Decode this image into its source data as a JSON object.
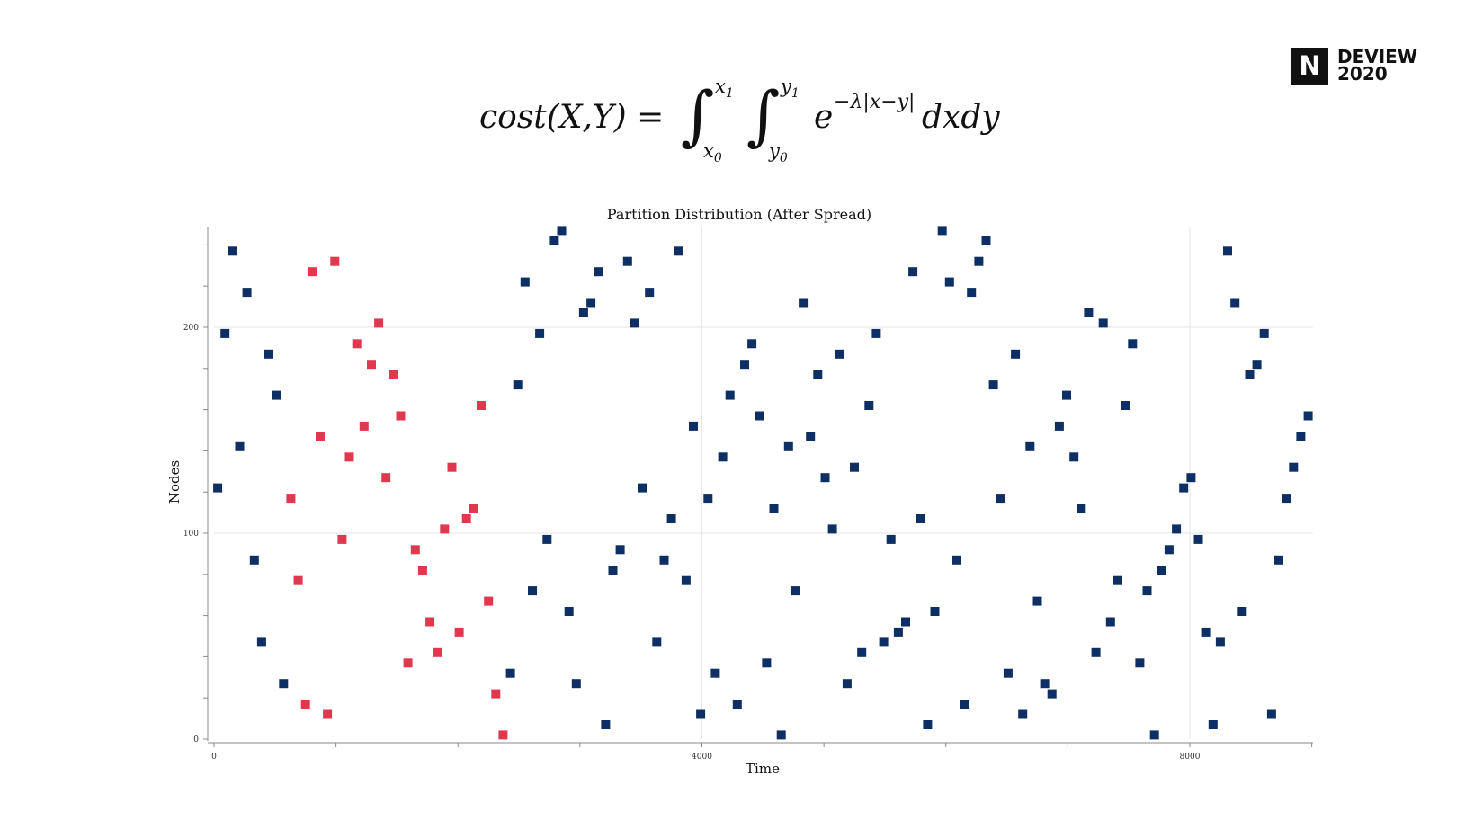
{
  "logo": {
    "letter": "N",
    "line1": "DEVIEW",
    "line2": "2020"
  },
  "formula": {
    "lhs": "cost(X,Y) =",
    "upper1": "x",
    "upper1_sub": "1",
    "lower1": "x",
    "lower1_sub": "0",
    "upper2": "y",
    "upper2_sub": "1",
    "lower2": "y",
    "lower2_sub": "0",
    "base": "e",
    "exponent": "−λ|x−y|",
    "diff": "dxdy"
  },
  "chart_data": {
    "type": "scatter",
    "title": "Partition Distribution (After Spread)",
    "xlabel": "Time",
    "ylabel": "Nodes",
    "xlim": [
      0,
      9050
    ],
    "ylim": [
      0,
      250
    ],
    "xticks": [
      0,
      4000,
      8000
    ],
    "yticks": [
      0,
      100,
      200
    ],
    "grid": true,
    "series": [
      {
        "color": "#e0384f",
        "points": [
          [
            630,
            117
          ],
          [
            690,
            77
          ],
          [
            750,
            17
          ],
          [
            810,
            227
          ],
          [
            870,
            147
          ],
          [
            930,
            12
          ],
          [
            990,
            232
          ],
          [
            1050,
            97
          ],
          [
            1110,
            137
          ],
          [
            1170,
            192
          ],
          [
            1230,
            152
          ],
          [
            1290,
            182
          ],
          [
            1350,
            202
          ],
          [
            1410,
            127
          ],
          [
            1470,
            177
          ],
          [
            1530,
            157
          ],
          [
            1590,
            37
          ],
          [
            1650,
            92
          ],
          [
            1710,
            82
          ],
          [
            1770,
            57
          ],
          [
            1830,
            42
          ],
          [
            1890,
            102
          ],
          [
            1950,
            132
          ],
          [
            2010,
            52
          ],
          [
            2070,
            107
          ],
          [
            2130,
            112
          ],
          [
            2190,
            162
          ],
          [
            2250,
            67
          ],
          [
            2310,
            22
          ],
          [
            2370,
            2
          ]
        ]
      },
      {
        "color": "#0d2f63",
        "points": [
          [
            30,
            122
          ],
          [
            90,
            197
          ],
          [
            150,
            237
          ],
          [
            210,
            142
          ],
          [
            270,
            217
          ],
          [
            330,
            87
          ],
          [
            390,
            47
          ],
          [
            450,
            187
          ],
          [
            510,
            167
          ],
          [
            570,
            27
          ],
          [
            2430,
            32
          ],
          [
            2490,
            172
          ],
          [
            2550,
            222
          ],
          [
            2610,
            72
          ],
          [
            2670,
            197
          ],
          [
            2730,
            97
          ],
          [
            2790,
            242
          ],
          [
            2850,
            247
          ],
          [
            2910,
            62
          ],
          [
            2970,
            27
          ],
          [
            3030,
            207
          ],
          [
            3090,
            212
          ],
          [
            3150,
            227
          ],
          [
            3210,
            7
          ],
          [
            3270,
            82
          ],
          [
            3330,
            92
          ],
          [
            3390,
            232
          ],
          [
            3450,
            202
          ],
          [
            3510,
            122
          ],
          [
            3570,
            217
          ],
          [
            3630,
            47
          ],
          [
            3690,
            87
          ],
          [
            3750,
            107
          ],
          [
            3810,
            237
          ],
          [
            3870,
            77
          ],
          [
            3930,
            152
          ],
          [
            3990,
            12
          ],
          [
            4050,
            117
          ],
          [
            4110,
            32
          ],
          [
            4170,
            137
          ],
          [
            4230,
            167
          ],
          [
            4290,
            17
          ],
          [
            4350,
            182
          ],
          [
            4410,
            192
          ],
          [
            4470,
            157
          ],
          [
            4530,
            37
          ],
          [
            4590,
            112
          ],
          [
            4650,
            2
          ],
          [
            4710,
            142
          ],
          [
            4770,
            72
          ],
          [
            4830,
            212
          ],
          [
            4890,
            147
          ],
          [
            4950,
            177
          ],
          [
            5010,
            127
          ],
          [
            5070,
            102
          ],
          [
            5130,
            187
          ],
          [
            5190,
            27
          ],
          [
            5250,
            132
          ],
          [
            5310,
            42
          ],
          [
            5370,
            162
          ],
          [
            5430,
            197
          ],
          [
            5490,
            47
          ],
          [
            5550,
            97
          ],
          [
            5610,
            52
          ],
          [
            5670,
            57
          ],
          [
            5730,
            227
          ],
          [
            5790,
            107
          ],
          [
            5850,
            7
          ],
          [
            5910,
            62
          ],
          [
            5970,
            247
          ],
          [
            6030,
            222
          ],
          [
            6090,
            87
          ],
          [
            6150,
            17
          ],
          [
            6210,
            217
          ],
          [
            6270,
            232
          ],
          [
            6330,
            242
          ],
          [
            6390,
            172
          ],
          [
            6450,
            117
          ],
          [
            6510,
            32
          ],
          [
            6570,
            187
          ],
          [
            6630,
            12
          ],
          [
            6690,
            142
          ],
          [
            6750,
            67
          ],
          [
            6810,
            27
          ],
          [
            6870,
            22
          ],
          [
            6930,
            152
          ],
          [
            6990,
            167
          ],
          [
            7050,
            137
          ],
          [
            7110,
            112
          ],
          [
            7170,
            207
          ],
          [
            7230,
            42
          ],
          [
            7290,
            202
          ],
          [
            7350,
            57
          ],
          [
            7410,
            77
          ],
          [
            7470,
            162
          ],
          [
            7530,
            192
          ],
          [
            7590,
            37
          ],
          [
            7650,
            72
          ],
          [
            7710,
            2
          ],
          [
            7770,
            82
          ],
          [
            7830,
            92
          ],
          [
            7890,
            102
          ],
          [
            7950,
            122
          ],
          [
            8010,
            127
          ],
          [
            8070,
            97
          ],
          [
            8130,
            52
          ],
          [
            8190,
            7
          ],
          [
            8250,
            47
          ],
          [
            8310,
            237
          ],
          [
            8370,
            212
          ],
          [
            8430,
            62
          ],
          [
            8490,
            177
          ],
          [
            8550,
            182
          ],
          [
            8610,
            197
          ],
          [
            8670,
            12
          ],
          [
            8730,
            87
          ],
          [
            8790,
            117
          ],
          [
            8850,
            132
          ],
          [
            8910,
            147
          ],
          [
            8970,
            157
          ]
        ]
      }
    ]
  }
}
